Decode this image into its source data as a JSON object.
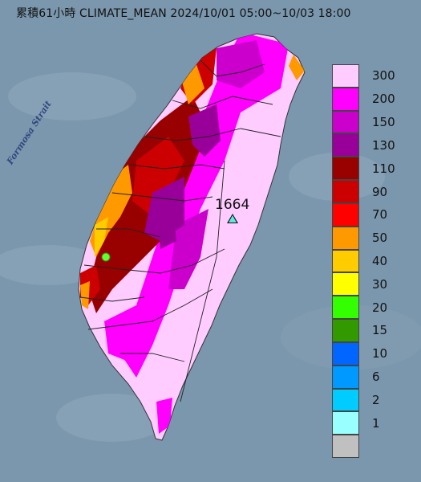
{
  "title": "累積61小時 CLIMATE_MEAN 2024/10/01 05:00~10/03 18:00",
  "map": {
    "strait_label": "Formosa Strait",
    "max_value_label": "1664",
    "colors": {
      "sea": "#7b97ad",
      "land_base": "#ffccff",
      "outline": "#222222"
    }
  },
  "legend": {
    "items": [
      {
        "label": "300",
        "color": "#ffccff"
      },
      {
        "label": "200",
        "color": "#ff00ff"
      },
      {
        "label": "150",
        "color": "#cc00cc"
      },
      {
        "label": "130",
        "color": "#990099"
      },
      {
        "label": "110",
        "color": "#990000"
      },
      {
        "label": "90",
        "color": "#cc0000"
      },
      {
        "label": "70",
        "color": "#ff0000"
      },
      {
        "label": "50",
        "color": "#ff9900"
      },
      {
        "label": "40",
        "color": "#ffcc00"
      },
      {
        "label": "30",
        "color": "#ffff00"
      },
      {
        "label": "20",
        "color": "#33ff00"
      },
      {
        "label": "15",
        "color": "#339900"
      },
      {
        "label": "10",
        "color": "#0066ff"
      },
      {
        "label": "6",
        "color": "#0099ff"
      },
      {
        "label": "2",
        "color": "#00ccff"
      },
      {
        "label": "1",
        "color": "#99ffff"
      },
      {
        "label": "",
        "color": "#c0c0c0"
      }
    ]
  }
}
